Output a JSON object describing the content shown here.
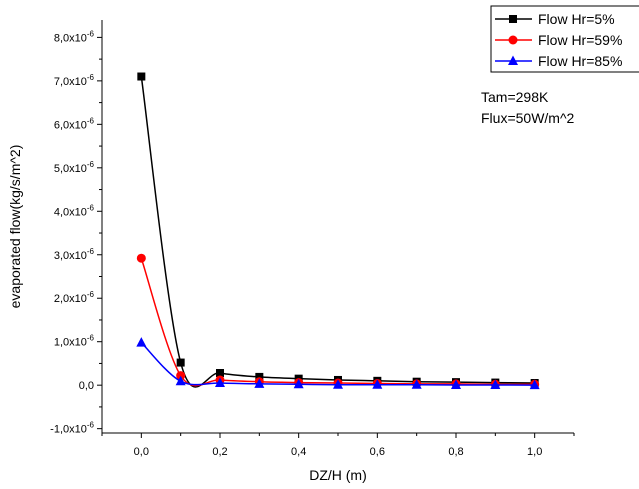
{
  "chart_data": {
    "type": "line",
    "xlabel": "DZ/H (m)",
    "ylabel": "evaporated flow(kg/s/m^2)",
    "xlim": [
      -0.1,
      1.1
    ],
    "ylim": [
      -1.1e-06,
      8.4e-06
    ],
    "x_ticks": [
      0.0,
      0.2,
      0.4,
      0.6,
      0.8,
      1.0
    ],
    "x_tick_labels": [
      "0,0",
      "0,2",
      "0,4",
      "0,6",
      "0,8",
      "1,0"
    ],
    "y_ticks": [
      {
        "value": -1e-06,
        "mantissa": "-1,0x10",
        "exp": "-6"
      },
      {
        "value": 0,
        "mantissa": "0,0",
        "exp": ""
      },
      {
        "value": 1e-06,
        "mantissa": "1,0x10",
        "exp": "-6"
      },
      {
        "value": 2e-06,
        "mantissa": "2,0x10",
        "exp": "-6"
      },
      {
        "value": 3e-06,
        "mantissa": "3,0x10",
        "exp": "-6"
      },
      {
        "value": 4e-06,
        "mantissa": "4,0x10",
        "exp": "-6"
      },
      {
        "value": 5e-06,
        "mantissa": "5,0x10",
        "exp": "-6"
      },
      {
        "value": 6e-06,
        "mantissa": "6,0x10",
        "exp": "-6"
      },
      {
        "value": 7e-06,
        "mantissa": "7,0x10",
        "exp": "-6"
      },
      {
        "value": 8e-06,
        "mantissa": "8,0x10",
        "exp": "-6"
      }
    ],
    "series": [
      {
        "name": "Flow Hr=5%",
        "color": "#000000",
        "marker": "square",
        "x": [
          0.0,
          0.1,
          0.2,
          0.3,
          0.4,
          0.5,
          0.6,
          0.7,
          0.8,
          0.9,
          1.0
        ],
        "y": [
          7.1e-06,
          5.2e-07,
          2.8e-07,
          1.9e-07,
          1.5e-07,
          1.2e-07,
          1e-07,
          8e-08,
          7e-08,
          6e-08,
          5e-08
        ]
      },
      {
        "name": "Flow Hr=59%",
        "color": "#ff0000",
        "marker": "circle",
        "x": [
          0.0,
          0.1,
          0.2,
          0.3,
          0.4,
          0.5,
          0.6,
          0.7,
          0.8,
          0.9,
          1.0
        ],
        "y": [
          2.92e-06,
          2.2e-07,
          1.2e-07,
          8e-08,
          6e-08,
          5e-08,
          4e-08,
          3e-08,
          3e-08,
          2e-08,
          2e-08
        ]
      },
      {
        "name": "Flow Hr=85%",
        "color": "#0000ff",
        "marker": "triangle",
        "x": [
          0.0,
          0.1,
          0.2,
          0.3,
          0.4,
          0.5,
          0.6,
          0.7,
          0.8,
          0.9,
          1.0
        ],
        "y": [
          9.8e-07,
          9e-08,
          5e-08,
          3e-08,
          2e-08,
          1e-08,
          1e-08,
          1e-08,
          5e-09,
          5e-09,
          0
        ]
      }
    ],
    "legend_position": "top-right",
    "annotations": [
      "Tam=298K",
      "Flux=50W/m^2"
    ]
  }
}
